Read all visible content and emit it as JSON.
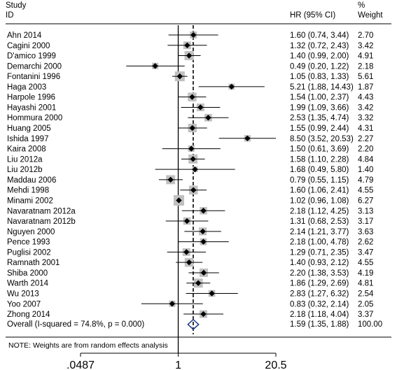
{
  "chart_data": {
    "type": "forest",
    "header": {
      "study_line1": "Study",
      "study_line2": "ID",
      "hr_label": "HR (95% CI)",
      "weight_line1": "%",
      "weight_line2": "Weight"
    },
    "scale": "log",
    "xlim": [
      0.0487,
      20.5
    ],
    "x_ticks": [
      {
        "value": 0.0487,
        "label": ".0487"
      },
      {
        "value": 1,
        "label": "1"
      },
      {
        "value": 20.5,
        "label": "20.5"
      }
    ],
    "reference_line": 1,
    "studies": [
      {
        "id": "Ahn 2014",
        "hr": 1.6,
        "lo": 0.74,
        "hi": 3.44,
        "hr_text": "1.60 (0.74, 3.44)",
        "weight": "2.70"
      },
      {
        "id": "Cagini 2000",
        "hr": 1.32,
        "lo": 0.72,
        "hi": 2.43,
        "hr_text": "1.32 (0.72, 2.43)",
        "weight": "3.42"
      },
      {
        "id": "D'amico 1999",
        "hr": 1.4,
        "lo": 0.99,
        "hi": 2.0,
        "hr_text": "1.40 (0.99, 2.00)",
        "weight": "4.91"
      },
      {
        "id": "Demarchi 2000",
        "hr": 0.49,
        "lo": 0.2,
        "hi": 1.22,
        "hr_text": "0.49 (0.20, 1.22)",
        "weight": "2.18"
      },
      {
        "id": "Fontanini 1996",
        "hr": 1.05,
        "lo": 0.83,
        "hi": 1.33,
        "hr_text": "1.05 (0.83, 1.33)",
        "weight": "5.61"
      },
      {
        "id": "Haga 2003",
        "hr": 5.21,
        "lo": 1.88,
        "hi": 14.43,
        "hr_text": "5.21 (1.88, 14.43)",
        "weight": "1.87"
      },
      {
        "id": "Harpole 1996",
        "hr": 1.54,
        "lo": 1.0,
        "hi": 2.37,
        "hr_text": "1.54 (1.00, 2.37)",
        "weight": "4.43"
      },
      {
        "id": "Hayashi 2001",
        "hr": 1.99,
        "lo": 1.09,
        "hi": 3.66,
        "hr_text": "1.99 (1.09, 3.66)",
        "weight": "3.42"
      },
      {
        "id": "Hommura 2000",
        "hr": 2.53,
        "lo": 1.35,
        "hi": 4.74,
        "hr_text": "2.53 (1.35, 4.74)",
        "weight": "3.32"
      },
      {
        "id": "Huang 2005",
        "hr": 1.55,
        "lo": 0.99,
        "hi": 2.44,
        "hr_text": "1.55 (0.99, 2.44)",
        "weight": "4.31"
      },
      {
        "id": "Ishida 1997",
        "hr": 8.5,
        "lo": 3.52,
        "hi": 20.53,
        "hr_text": "8.50 (3.52, 20.53)",
        "weight": "2.27"
      },
      {
        "id": "Kaira 2008",
        "hr": 1.5,
        "lo": 0.61,
        "hi": 3.69,
        "hr_text": "1.50 (0.61, 3.69)",
        "weight": "2.20"
      },
      {
        "id": "Liu 2012a",
        "hr": 1.58,
        "lo": 1.1,
        "hi": 2.28,
        "hr_text": "1.58 (1.10, 2.28)",
        "weight": "4.84"
      },
      {
        "id": "Liu 2012b",
        "hr": 1.68,
        "lo": 0.49,
        "hi": 5.8,
        "hr_text": "1.68 (0.49, 5.80)",
        "weight": "1.40"
      },
      {
        "id": "Maddau 2006",
        "hr": 0.79,
        "lo": 0.55,
        "hi": 1.15,
        "hr_text": "0.79 (0.55, 1.15)",
        "weight": "4.79"
      },
      {
        "id": "Mehdi 1998",
        "hr": 1.6,
        "lo": 1.06,
        "hi": 2.41,
        "hr_text": "1.60 (1.06, 2.41)",
        "weight": "4.55"
      },
      {
        "id": "Minami 2002",
        "hr": 1.02,
        "lo": 0.96,
        "hi": 1.08,
        "hr_text": "1.02 (0.96, 1.08)",
        "weight": "6.27"
      },
      {
        "id": "Navaratnam 2012a",
        "hr": 2.18,
        "lo": 1.12,
        "hi": 4.25,
        "hr_text": "2.18 (1.12, 4.25)",
        "weight": "3.13"
      },
      {
        "id": "Navaratnam 2012b",
        "hr": 1.31,
        "lo": 0.68,
        "hi": 2.53,
        "hr_text": "1.31 (0.68, 2.53)",
        "weight": "3.17"
      },
      {
        "id": "Nguyen 2000",
        "hr": 2.14,
        "lo": 1.21,
        "hi": 3.77,
        "hr_text": "2.14 (1.21, 3.77)",
        "weight": "3.63"
      },
      {
        "id": "Pence 1993",
        "hr": 2.18,
        "lo": 1.0,
        "hi": 4.78,
        "hr_text": "2.18 (1.00, 4.78)",
        "weight": "2.62"
      },
      {
        "id": "Puglisi 2002",
        "hr": 1.29,
        "lo": 0.71,
        "hi": 2.35,
        "hr_text": "1.29 (0.71, 2.35)",
        "weight": "3.47"
      },
      {
        "id": "Ramnath 2001",
        "hr": 1.4,
        "lo": 0.93,
        "hi": 2.12,
        "hr_text": "1.40 (0.93, 2.12)",
        "weight": "4.55"
      },
      {
        "id": "Shiba 2000",
        "hr": 2.2,
        "lo": 1.38,
        "hi": 3.53,
        "hr_text": "2.20 (1.38, 3.53)",
        "weight": "4.19"
      },
      {
        "id": "Warth 2014",
        "hr": 1.86,
        "lo": 1.29,
        "hi": 2.69,
        "hr_text": "1.86 (1.29, 2.69)",
        "weight": "4.81"
      },
      {
        "id": "Wu 2013",
        "hr": 2.83,
        "lo": 1.27,
        "hi": 6.32,
        "hr_text": "2.83 (1.27, 6.32)",
        "weight": "2.54"
      },
      {
        "id": "Yoo 2007",
        "hr": 0.83,
        "lo": 0.32,
        "hi": 2.14,
        "hr_text": "0.83 (0.32, 2.14)",
        "weight": "2.05"
      },
      {
        "id": "Zhong 2014",
        "hr": 2.18,
        "lo": 1.18,
        "hi": 4.04,
        "hr_text": "2.18 (1.18, 4.04)",
        "weight": "3.37"
      }
    ],
    "overall": {
      "label": "Overall  (I-squared = 74.8%, p = 0.000)",
      "hr": 1.59,
      "lo": 1.35,
      "hi": 1.88,
      "hr_text": "1.59 (1.35, 1.88)",
      "weight": "100.00"
    },
    "note": "NOTE: Weights are from random effects analysis",
    "colors": {
      "marker": "#000000",
      "weight_box": "#c0c0c0",
      "overall_diamond": "#1f3a8a",
      "axis": "#000000"
    }
  }
}
